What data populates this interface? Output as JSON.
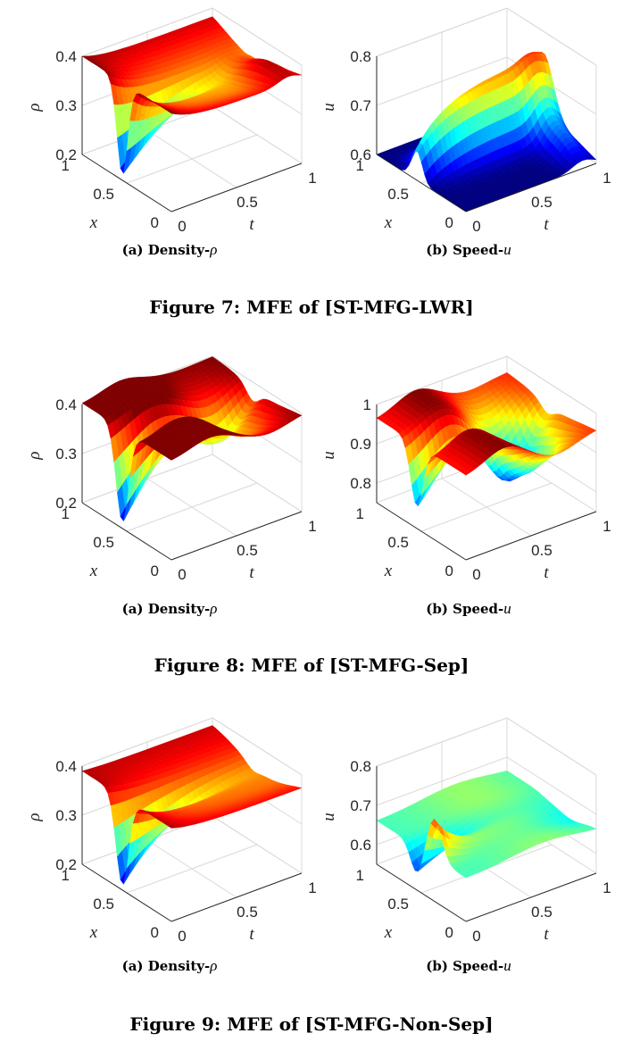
{
  "figures": [
    {
      "caption": "Figure 7: MFE of [ST-MFG-LWR]",
      "panels": [
        {
          "label": "(a) Density-",
          "var": "ρ",
          "zlabel": "ρ",
          "zticks": [
            "0.4",
            "0.3",
            "0.2"
          ],
          "zlim": [
            0.2,
            0.4
          ],
          "zvals": [
            0.4,
            0.3,
            0.2
          ],
          "surface": "lwr-density"
        },
        {
          "label": "(b) Speed-",
          "var": "u",
          "zlabel": "u",
          "zticks": [
            "0.8",
            "0.7",
            "0.6"
          ],
          "zlim": [
            0.6,
            0.8
          ],
          "zvals": [
            0.8,
            0.7,
            0.6
          ],
          "surface": "lwr-speed"
        }
      ]
    },
    {
      "caption": "Figure 8: MFE of [ST-MFG-Sep]",
      "panels": [
        {
          "label": "(a) Density-",
          "var": "ρ",
          "zlabel": "ρ",
          "zticks": [
            "0.4",
            "0.3",
            "0.2"
          ],
          "zlim": [
            0.2,
            0.4
          ],
          "zvals": [
            0.4,
            0.3,
            0.2
          ],
          "surface": "sep-density"
        },
        {
          "label": "(b) Speed-",
          "var": "u",
          "zlabel": "u",
          "zticks": [
            "1",
            "0.9",
            "0.8"
          ],
          "zlim": [
            0.75,
            1.0
          ],
          "zvals": [
            1.0,
            0.9,
            0.8
          ],
          "surface": "sep-speed"
        }
      ]
    },
    {
      "caption": "Figure 9: MFE of [ST-MFG-Non-Sep]",
      "panels": [
        {
          "label": "(a) Density-",
          "var": "ρ",
          "zlabel": "ρ",
          "zticks": [
            "0.4",
            "0.3",
            "0.2"
          ],
          "zlim": [
            0.2,
            0.4
          ],
          "zvals": [
            0.4,
            0.3,
            0.2
          ],
          "surface": "nonsep-density"
        },
        {
          "label": "(b) Speed-",
          "var": "u",
          "zlabel": "u",
          "zticks": [
            "0.8",
            "0.7",
            "0.6"
          ],
          "zlim": [
            0.55,
            0.8
          ],
          "zvals": [
            0.8,
            0.7,
            0.6
          ],
          "surface": "nonsep-speed"
        }
      ]
    }
  ],
  "axes": {
    "x_label": "x",
    "t_label": "t",
    "x_ticks": [
      "1",
      "0.5",
      "0"
    ],
    "t_ticks": [
      "0",
      "0.5",
      "1"
    ]
  },
  "colormap": [
    "#00008f",
    "#0000ff",
    "#00ffff",
    "#ffff00",
    "#ff0000",
    "#800000"
  ]
}
